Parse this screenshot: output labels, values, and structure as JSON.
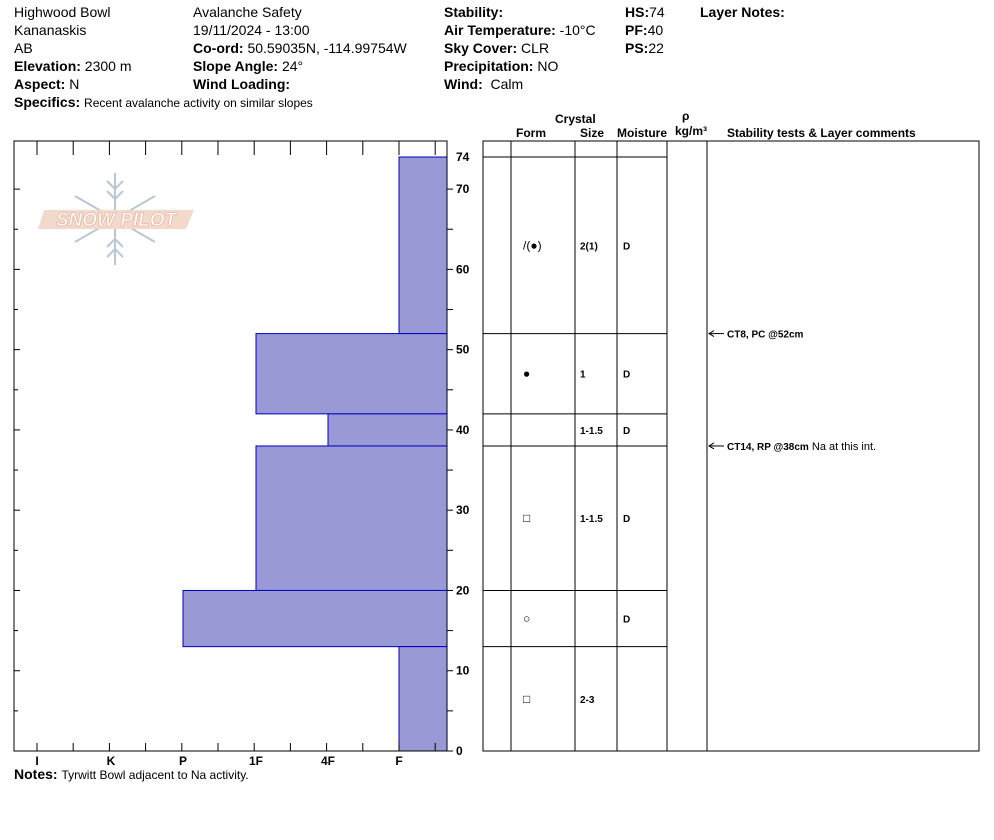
{
  "header": {
    "location": "Highwood Bowl",
    "region": "Kananaskis",
    "province": "AB",
    "elevation_label": "Elevation:",
    "elevation_value": "2300 m",
    "aspect_label": "Aspect:",
    "aspect_value": "N",
    "specifics_label": "Specifics:",
    "specifics_value": "Recent avalanche activity on similar slopes",
    "organization": "Avalanche Safety",
    "datetime": "19/11/2024 - 13:00",
    "coord_label": "Co-ord:",
    "coord_value": "50.59035N, -114.99754W",
    "slope_label": "Slope Angle:",
    "slope_value": "24°",
    "wind_loading_label": "Wind Loading:",
    "wind_loading_value": "",
    "stability_label": "Stability:",
    "stability_value": "",
    "air_temp_label": "Air Temperature:",
    "air_temp_value": "-10°C",
    "sky_label": "Sky Cover:",
    "sky_value": "CLR",
    "precip_label": "Precipitation:",
    "precip_value": "NO",
    "wind_label": "Wind:",
    "wind_value": "Calm",
    "hs_label": "HS:",
    "hs_value": "74",
    "pf_label": "PF:",
    "pf_value": "40",
    "ps_label": "PS:",
    "ps_value": "22",
    "layer_notes_label": "Layer Notes:"
  },
  "notes_label": "Notes:",
  "notes_value": "Tyrwitt Bowl adjacent to Na activity.",
  "logo_text": "SNOW PILOT",
  "columns": {
    "crystal": "Crystal",
    "form": "Form",
    "size": "Size",
    "moisture": "Moisture",
    "rho": "ρ",
    "density_unit": "kg/m³",
    "comments": "Stability tests & Layer comments"
  },
  "chart_data": {
    "type": "bar",
    "orientation": "horizontal",
    "y_range": [
      0,
      74
    ],
    "y_ticks": [
      0,
      10,
      20,
      30,
      40,
      50,
      60,
      70,
      74
    ],
    "hardness_scale": [
      "I",
      "K",
      "P",
      "1F",
      "4F",
      "F"
    ],
    "hardness_values": {
      "I": 6,
      "K": 5,
      "P": 4,
      "1F": 3,
      "4F": 2,
      "F": 1
    },
    "bar_color": "#9999d6",
    "bar_edge_color": "#0000c0",
    "layers": [
      {
        "top": 74,
        "bottom": 52,
        "hardness": "F",
        "form": "/(●)",
        "size": "2(1)",
        "moisture": "D"
      },
      {
        "top": 52,
        "bottom": 42,
        "hardness": "1F",
        "form": "●",
        "size": "1",
        "moisture": "D"
      },
      {
        "top": 42,
        "bottom": 38,
        "hardness": "4F",
        "form": "",
        "size": "1-1.5",
        "moisture": "D"
      },
      {
        "top": 38,
        "bottom": 20,
        "hardness": "1F",
        "form": "□",
        "size": "1-1.5",
        "moisture": "D"
      },
      {
        "top": 20,
        "bottom": 13,
        "hardness": "P",
        "form": "○",
        "size": "",
        "moisture": "D"
      },
      {
        "top": 13,
        "bottom": 0,
        "hardness": "F",
        "form": "□",
        "size": "2-3",
        "moisture": ""
      }
    ],
    "tests": [
      {
        "depth": 52,
        "label": "CT8, PC @52cm",
        "note": ""
      },
      {
        "depth": 38,
        "label": "CT14, RP @38cm",
        "note": "Na at this int."
      }
    ]
  }
}
